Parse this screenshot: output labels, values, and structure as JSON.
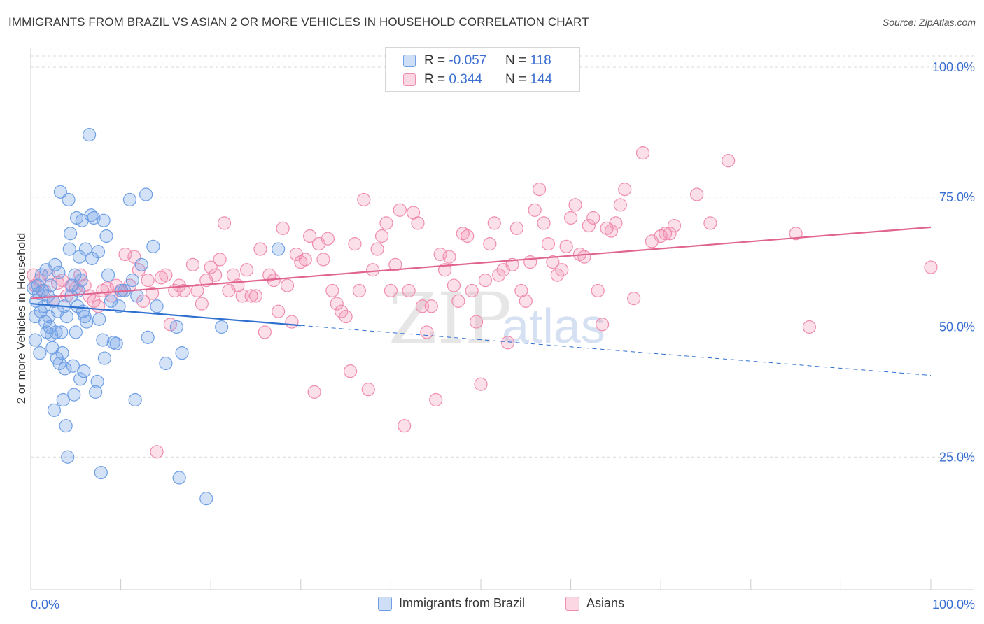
{
  "title": "IMMIGRANTS FROM BRAZIL VS ASIAN 2 OR MORE VEHICLES IN HOUSEHOLD CORRELATION CHART",
  "source": "Source: ZipAtlas.com",
  "watermark": {
    "zip": "ZIP",
    "atlas": "atlas"
  },
  "colors": {
    "blue": "#6fa0e6",
    "blue_fill": "rgba(111,160,230,0.30)",
    "blue_line": "#2e6fd0",
    "pink": "#f08cb0",
    "pink_fill": "rgba(240,140,176,0.28)",
    "pink_line": "#e0648f",
    "axis_text": "#3a6fd1",
    "grid": "#d9d9d9"
  },
  "legend": {
    "rows": [
      {
        "r_label": "R =",
        "r_value": "-0.057",
        "n_label": "N =",
        "n_value": "118"
      },
      {
        "r_label": "R =",
        "r_value": "0.344",
        "n_label": "N =",
        "n_value": "144"
      }
    ]
  },
  "bottom_legend": [
    "Immigrants from Brazil",
    "Asians"
  ],
  "chart_data": {
    "type": "scatter",
    "title": "IMMIGRANTS FROM BRAZIL VS ASIAN 2 OR MORE VEHICLES IN HOUSEHOLD CORRELATION CHART",
    "xlabel": "",
    "ylabel": "2 or more Vehicles in Household",
    "xlim": [
      0,
      100
    ],
    "ylim": [
      0,
      100
    ],
    "x_tick_labels": [
      "0.0%",
      "100.0%"
    ],
    "y_tick_labels": [
      "100.0%",
      "75.0%",
      "50.0%",
      "25.0%"
    ],
    "y_ticks": [
      100,
      75,
      50,
      25
    ],
    "grid": true,
    "legend_position": "top-center",
    "series": [
      {
        "name": "Immigrants from Brazil",
        "color": "blue",
        "trend": {
          "x0": 0,
          "y0": 54.5,
          "x1": 30,
          "y1": 50.3,
          "dashed_to_x": 100,
          "dashed_to_y": 40.7
        },
        "points": [
          [
            0.3,
            57.5
          ],
          [
            0.5,
            52
          ],
          [
            0.5,
            47.5
          ],
          [
            0.6,
            55
          ],
          [
            0.8,
            58
          ],
          [
            0.9,
            56.5
          ],
          [
            1.0,
            45
          ],
          [
            1.1,
            53
          ],
          [
            1.2,
            60
          ],
          [
            1.3,
            57
          ],
          [
            1.5,
            54
          ],
          [
            1.6,
            51
          ],
          [
            1.7,
            61
          ],
          [
            1.8,
            49
          ],
          [
            1.9,
            56
          ],
          [
            2.0,
            52
          ],
          [
            2.1,
            50
          ],
          [
            2.2,
            58
          ],
          [
            2.3,
            48.5
          ],
          [
            2.4,
            46
          ],
          [
            2.5,
            55
          ],
          [
            2.6,
            34
          ],
          [
            2.7,
            62
          ],
          [
            2.8,
            49
          ],
          [
            2.9,
            44
          ],
          [
            3.0,
            53
          ],
          [
            3.1,
            60.5
          ],
          [
            3.2,
            43
          ],
          [
            3.3,
            76
          ],
          [
            3.4,
            49
          ],
          [
            3.5,
            45
          ],
          [
            3.6,
            36
          ],
          [
            3.7,
            54
          ],
          [
            3.8,
            42
          ],
          [
            3.9,
            31
          ],
          [
            4.0,
            52
          ],
          [
            4.1,
            25
          ],
          [
            4.2,
            74.5
          ],
          [
            4.3,
            65
          ],
          [
            4.4,
            68
          ],
          [
            4.5,
            56
          ],
          [
            4.6,
            58
          ],
          [
            4.7,
            42.5
          ],
          [
            4.8,
            37
          ],
          [
            4.9,
            60
          ],
          [
            5.0,
            49
          ],
          [
            5.1,
            71
          ],
          [
            5.2,
            54
          ],
          [
            5.3,
            57
          ],
          [
            5.4,
            63.5
          ],
          [
            5.5,
            40
          ],
          [
            5.6,
            59
          ],
          [
            5.7,
            70.5
          ],
          [
            5.8,
            53
          ],
          [
            5.9,
            41.5
          ],
          [
            6.0,
            52
          ],
          [
            6.1,
            65
          ],
          [
            6.2,
            51
          ],
          [
            6.5,
            87
          ],
          [
            6.7,
            71.5
          ],
          [
            6.8,
            63.2
          ],
          [
            7.0,
            71
          ],
          [
            7.2,
            37.5
          ],
          [
            7.4,
            39.5
          ],
          [
            7.5,
            64.5
          ],
          [
            7.6,
            51.5
          ],
          [
            7.8,
            22
          ],
          [
            8.0,
            47.5
          ],
          [
            8.1,
            70.5
          ],
          [
            8.2,
            44
          ],
          [
            8.4,
            67.5
          ],
          [
            8.6,
            60
          ],
          [
            8.9,
            55
          ],
          [
            9.2,
            47
          ],
          [
            9.5,
            46.8
          ],
          [
            9.8,
            54
          ],
          [
            10.1,
            57
          ],
          [
            10.4,
            57
          ],
          [
            11.0,
            74.5
          ],
          [
            11.3,
            59
          ],
          [
            11.6,
            36
          ],
          [
            11.8,
            56
          ],
          [
            12.3,
            62
          ],
          [
            12.8,
            75.5
          ],
          [
            13.0,
            48
          ],
          [
            13.6,
            65.5
          ],
          [
            14.0,
            54
          ],
          [
            15.0,
            43
          ],
          [
            16.2,
            50
          ],
          [
            16.5,
            21
          ],
          [
            16.8,
            45
          ],
          [
            19.5,
            17
          ],
          [
            21.2,
            50
          ],
          [
            27.5,
            65
          ]
        ]
      },
      {
        "name": "Asians",
        "color": "pink",
        "trend": {
          "x0": 0,
          "y0": 55.5,
          "x1": 100,
          "y1": 69.2
        },
        "points": [
          [
            0.3,
            60
          ],
          [
            0.5,
            58
          ],
          [
            1.0,
            59
          ],
          [
            1.5,
            57
          ],
          [
            2.0,
            60
          ],
          [
            2.5,
            55
          ],
          [
            3.0,
            58.5
          ],
          [
            3.5,
            59
          ],
          [
            4.0,
            56
          ],
          [
            4.5,
            58
          ],
          [
            5.0,
            57.5
          ],
          [
            5.5,
            60
          ],
          [
            6.0,
            58
          ],
          [
            6.5,
            56
          ],
          [
            7.0,
            55
          ],
          [
            7.5,
            54
          ],
          [
            8.0,
            57
          ],
          [
            8.5,
            57.5
          ],
          [
            9.0,
            56
          ],
          [
            9.5,
            58
          ],
          [
            10.0,
            57
          ],
          [
            10.5,
            64
          ],
          [
            11.0,
            58
          ],
          [
            11.5,
            63.5
          ],
          [
            12.0,
            61
          ],
          [
            12.5,
            55
          ],
          [
            13.0,
            59
          ],
          [
            13.5,
            56.5
          ],
          [
            14.0,
            26
          ],
          [
            14.5,
            59.5
          ],
          [
            15.0,
            60
          ],
          [
            15.5,
            50.5
          ],
          [
            16.0,
            57
          ],
          [
            16.5,
            58
          ],
          [
            17.0,
            57
          ],
          [
            18.0,
            62
          ],
          [
            18.5,
            57
          ],
          [
            19.0,
            54.5
          ],
          [
            19.5,
            59
          ],
          [
            20.0,
            61.5
          ],
          [
            20.5,
            60
          ],
          [
            21.0,
            63
          ],
          [
            21.5,
            70
          ],
          [
            22.0,
            57
          ],
          [
            22.5,
            60
          ],
          [
            23.0,
            58
          ],
          [
            23.5,
            56
          ],
          [
            24.0,
            61
          ],
          [
            24.5,
            56
          ],
          [
            25.0,
            56
          ],
          [
            25.5,
            65
          ],
          [
            26.0,
            49
          ],
          [
            26.5,
            60
          ],
          [
            27.0,
            59
          ],
          [
            27.5,
            53
          ],
          [
            28.0,
            69
          ],
          [
            28.5,
            58
          ],
          [
            29.0,
            51
          ],
          [
            29.5,
            64
          ],
          [
            30.0,
            62.5
          ],
          [
            30.5,
            63
          ],
          [
            31.0,
            67.5
          ],
          [
            31.5,
            37.5
          ],
          [
            32.0,
            66
          ],
          [
            32.5,
            63
          ],
          [
            33.0,
            67
          ],
          [
            33.5,
            57
          ],
          [
            34.0,
            54.5
          ],
          [
            34.5,
            53
          ],
          [
            35.0,
            52
          ],
          [
            35.5,
            41.5
          ],
          [
            36.0,
            66
          ],
          [
            36.5,
            57
          ],
          [
            37.0,
            74.5
          ],
          [
            37.5,
            38
          ],
          [
            38.0,
            61
          ],
          [
            38.5,
            65
          ],
          [
            39.0,
            67.5
          ],
          [
            39.5,
            70
          ],
          [
            40.0,
            57
          ],
          [
            40.5,
            62
          ],
          [
            41.0,
            72.5
          ],
          [
            41.5,
            31
          ],
          [
            42.0,
            57
          ],
          [
            42.5,
            72
          ],
          [
            43.0,
            70
          ],
          [
            43.5,
            54
          ],
          [
            44.0,
            49
          ],
          [
            44.5,
            54
          ],
          [
            45.0,
            36
          ],
          [
            45.5,
            64
          ],
          [
            46.0,
            61
          ],
          [
            46.5,
            63.5
          ],
          [
            47.0,
            58
          ],
          [
            47.5,
            55
          ],
          [
            48.0,
            68
          ],
          [
            48.5,
            67.5
          ],
          [
            49.0,
            57
          ],
          [
            49.5,
            51
          ],
          [
            50.0,
            39
          ],
          [
            50.5,
            59
          ],
          [
            51.0,
            66
          ],
          [
            51.5,
            70
          ],
          [
            52.0,
            60
          ],
          [
            52.5,
            61
          ],
          [
            53.0,
            47
          ],
          [
            53.5,
            62
          ],
          [
            54.0,
            69
          ],
          [
            54.5,
            57
          ],
          [
            55.0,
            55
          ],
          [
            55.5,
            62.5
          ],
          [
            56.0,
            72.5
          ],
          [
            56.5,
            76.5
          ],
          [
            57.0,
            70
          ],
          [
            57.5,
            66
          ],
          [
            58.0,
            62.5
          ],
          [
            58.5,
            60
          ],
          [
            59.0,
            61
          ],
          [
            59.5,
            65.5
          ],
          [
            60.0,
            71
          ],
          [
            60.5,
            73.5
          ],
          [
            61.0,
            64
          ],
          [
            61.5,
            63.5
          ],
          [
            62.0,
            69.5
          ],
          [
            62.5,
            71
          ],
          [
            63.0,
            57
          ],
          [
            63.5,
            50.5
          ],
          [
            64.0,
            69
          ],
          [
            64.5,
            68.5
          ],
          [
            65.0,
            70
          ],
          [
            65.5,
            73.5
          ],
          [
            66.0,
            76.5
          ],
          [
            67.0,
            55.5
          ],
          [
            68.0,
            83.5
          ],
          [
            69.0,
            66.5
          ],
          [
            70.0,
            67.5
          ],
          [
            70.5,
            68
          ],
          [
            71.0,
            68
          ],
          [
            71.5,
            69.5
          ],
          [
            74.0,
            75.5
          ],
          [
            75.5,
            70
          ],
          [
            77.5,
            82
          ],
          [
            85.0,
            68
          ],
          [
            86.5,
            50
          ],
          [
            100.0,
            61.5
          ]
        ]
      }
    ]
  }
}
